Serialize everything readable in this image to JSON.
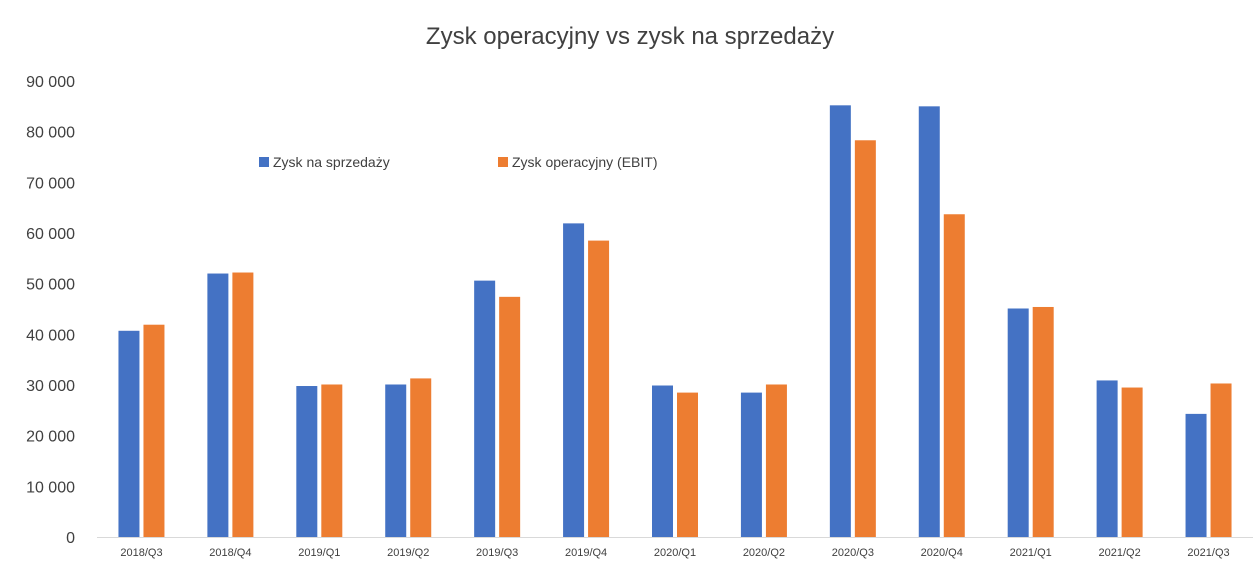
{
  "chart_data": {
    "type": "bar",
    "title": "Zysk operacyjny vs zysk na sprzedaży",
    "xlabel": "",
    "ylabel": "",
    "ylim": [
      0,
      90000
    ],
    "yticks": [
      0,
      10000,
      20000,
      30000,
      40000,
      50000,
      60000,
      70000,
      80000,
      90000
    ],
    "ytick_labels": [
      "0",
      "10 000",
      "20 000",
      "30 000",
      "40 000",
      "50 000",
      "60 000",
      "70 000",
      "80 000",
      "90 000"
    ],
    "grid": false,
    "legend_position": "top-left inside",
    "categories": [
      "2018/Q3",
      "2018/Q4",
      "2019/Q1",
      "2019/Q2",
      "2019/Q3",
      "2019/Q4",
      "2020/Q1",
      "2020/Q2",
      "2020/Q3",
      "2020/Q4",
      "2021/Q1",
      "2021/Q2",
      "2021/Q3"
    ],
    "series": [
      {
        "name": "Zysk na sprzedaży",
        "color": "#4472C4",
        "values": [
          40700,
          52000,
          29800,
          30100,
          50600,
          61900,
          29900,
          28500,
          85200,
          85000,
          45100,
          30900,
          24300
        ]
      },
      {
        "name": "Zysk operacyjny (EBIT)",
        "color": "#ED7D31",
        "values": [
          41900,
          52200,
          30100,
          31300,
          47400,
          58500,
          28500,
          30100,
          78300,
          63700,
          45400,
          29500,
          30300
        ]
      }
    ]
  }
}
